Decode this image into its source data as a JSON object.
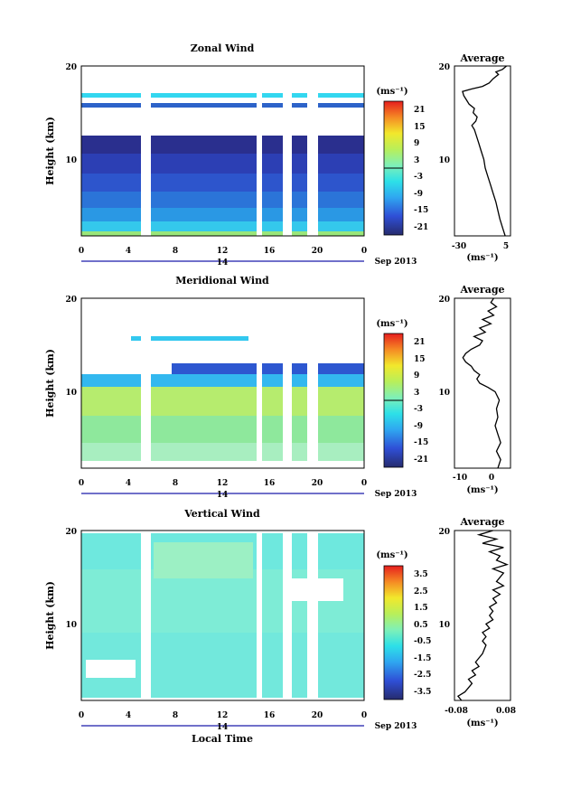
{
  "chart_data": [
    {
      "type": "heatmap",
      "title": "Zonal Wind",
      "ylabel": "Height (km)",
      "xlabel": "",
      "x_ticks": [
        "0",
        "4",
        "8",
        "12",
        "16",
        "20",
        "0"
      ],
      "y_ticks": [
        "10",
        "20"
      ],
      "ylim": [
        0,
        20
      ],
      "date_ticks": [
        "14"
      ],
      "date_label": "Sep 2013",
      "colorbar": {
        "unit": "(ms⁻¹)",
        "ticks": [
          "21",
          "15",
          "9",
          "3",
          "-3",
          "-9",
          "-15",
          "-21"
        ],
        "range": [
          -24,
          24
        ]
      },
      "average": {
        "title": "Average",
        "xlabel": "(ms⁻¹)",
        "x_ticks": [
          "-30",
          "5"
        ],
        "xlim": [
          -35,
          7
        ],
        "y_ticks": [
          "10",
          "20"
        ],
        "profile": [
          [
            0,
            3
          ],
          [
            1,
            1
          ],
          [
            2,
            -1
          ],
          [
            3,
            -2.5
          ],
          [
            4,
            -4
          ],
          [
            5,
            -6
          ],
          [
            6,
            -8
          ],
          [
            7,
            -10
          ],
          [
            8,
            -12
          ],
          [
            9,
            -13
          ],
          [
            10,
            -15
          ],
          [
            11,
            -17
          ],
          [
            12,
            -19
          ],
          [
            12.5,
            -20
          ],
          [
            13,
            -22
          ],
          [
            13.5,
            -19
          ],
          [
            14,
            -18
          ],
          [
            14.5,
            -21
          ],
          [
            15,
            -20
          ],
          [
            15.5,
            -24
          ],
          [
            16,
            -26
          ],
          [
            16.5,
            -28
          ],
          [
            17,
            -29
          ],
          [
            17.3,
            -22
          ],
          [
            17.6,
            -14
          ],
          [
            18,
            -9
          ],
          [
            18.5,
            -6
          ],
          [
            19,
            -2
          ],
          [
            19.3,
            -4
          ],
          [
            19.6,
            1
          ],
          [
            20,
            4
          ]
        ]
      }
    },
    {
      "type": "heatmap",
      "title": "Meridional Wind",
      "ylabel": "Height (km)",
      "xlabel": "",
      "x_ticks": [
        "0",
        "4",
        "8",
        "12",
        "16",
        "20",
        "0"
      ],
      "y_ticks": [
        "10",
        "20"
      ],
      "ylim": [
        0,
        20
      ],
      "date_ticks": [
        "14"
      ],
      "date_label": "Sep 2013",
      "colorbar": {
        "unit": "(ms⁻¹)",
        "ticks": [
          "21",
          "15",
          "9",
          "3",
          "-3",
          "-9",
          "-15",
          "-21"
        ],
        "range": [
          -24,
          24
        ]
      },
      "average": {
        "title": "Average",
        "xlabel": "(ms⁻¹)",
        "x_ticks": [
          "-10",
          "0"
        ],
        "xlim": [
          -15,
          5
        ],
        "y_ticks": [
          "10",
          "20"
        ],
        "profile": [
          [
            0,
            0.5
          ],
          [
            1,
            1.5
          ],
          [
            2,
            0
          ],
          [
            3,
            1.5
          ],
          [
            4,
            0.5
          ],
          [
            5,
            -0.5
          ],
          [
            6,
            0.5
          ],
          [
            7,
            0
          ],
          [
            8,
            1
          ],
          [
            9,
            -0.5
          ],
          [
            9.5,
            -3
          ],
          [
            10,
            -6
          ],
          [
            10.5,
            -7
          ],
          [
            11,
            -6
          ],
          [
            11.5,
            -8
          ],
          [
            12,
            -9
          ],
          [
            12.5,
            -11
          ],
          [
            13,
            -12
          ],
          [
            13.5,
            -11
          ],
          [
            14,
            -9
          ],
          [
            14.5,
            -6
          ],
          [
            15,
            -5
          ],
          [
            15.5,
            -8
          ],
          [
            16,
            -4
          ],
          [
            16.5,
            -6
          ],
          [
            17,
            -2
          ],
          [
            17.5,
            -5
          ],
          [
            18,
            -1
          ],
          [
            18.5,
            -3
          ],
          [
            19,
            0
          ],
          [
            19.5,
            -2
          ],
          [
            20,
            -1
          ]
        ]
      }
    },
    {
      "type": "heatmap",
      "title": "Vertical Wind",
      "ylabel": "Height (km)",
      "xlabel": "Local Time",
      "x_ticks": [
        "0",
        "4",
        "8",
        "12",
        "16",
        "20",
        "0"
      ],
      "y_ticks": [
        "10",
        "20"
      ],
      "ylim": [
        0,
        20
      ],
      "date_ticks": [
        "14"
      ],
      "date_label": "Sep 2013",
      "colorbar": {
        "unit": "(ms⁻¹)",
        "ticks": [
          "3.5",
          "2.5",
          "1.5",
          "0.5",
          "-0.5",
          "-1.5",
          "-2.5",
          "-3.5"
        ],
        "range": [
          -4,
          4
        ]
      },
      "average": {
        "title": "Average",
        "xlabel": "(ms⁻¹)",
        "x_ticks": [
          "-0.08",
          "0.08"
        ],
        "xlim": [
          -0.08,
          0.08
        ],
        "y_ticks": [
          "10",
          "20"
        ],
        "profile": [
          [
            0,
            -0.06
          ],
          [
            0.5,
            -0.07
          ],
          [
            1,
            -0.05
          ],
          [
            1.5,
            -0.04
          ],
          [
            2,
            -0.03
          ],
          [
            2.5,
            -0.04
          ],
          [
            3,
            -0.02
          ],
          [
            3.5,
            -0.03
          ],
          [
            4,
            -0.01
          ],
          [
            4.5,
            -0.02
          ],
          [
            5,
            -0.01
          ],
          [
            5.5,
            0.0
          ],
          [
            6,
            0.005
          ],
          [
            6.5,
            0.01
          ],
          [
            7,
            0.0
          ],
          [
            7.5,
            0.01
          ],
          [
            8,
            0.0
          ],
          [
            8.5,
            0.02
          ],
          [
            9,
            0.01
          ],
          [
            9.5,
            0.03
          ],
          [
            10,
            0.02
          ],
          [
            10.5,
            0.03
          ],
          [
            11,
            0.02
          ],
          [
            11.5,
            0.04
          ],
          [
            12,
            0.03
          ],
          [
            12.5,
            0.05
          ],
          [
            13,
            0.03
          ],
          [
            13.5,
            0.06
          ],
          [
            14,
            0.04
          ],
          [
            14.5,
            0.05
          ],
          [
            15,
            0.06
          ],
          [
            15.5,
            0.03
          ],
          [
            16,
            0.07
          ],
          [
            16.5,
            0.04
          ],
          [
            17,
            0.05
          ],
          [
            17.5,
            0.02
          ],
          [
            18,
            0.06
          ],
          [
            18.5,
            0.0
          ],
          [
            19,
            0.04
          ],
          [
            19.5,
            -0.01
          ],
          [
            20,
            0.03
          ]
        ]
      }
    }
  ]
}
